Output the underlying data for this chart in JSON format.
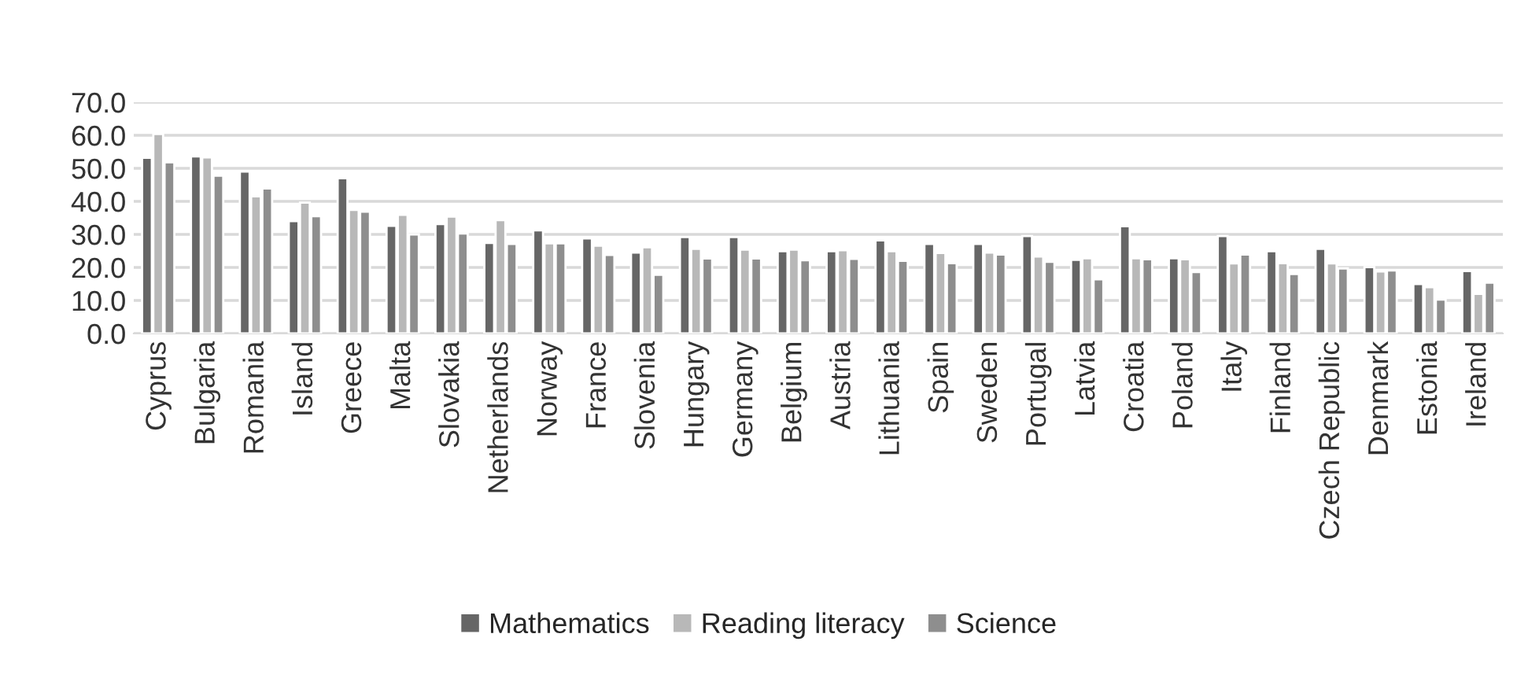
{
  "chart_data": {
    "type": "bar",
    "categories": [
      "Cyprus",
      "Bulgaria",
      "Romania",
      "Island",
      "Greece",
      "Malta",
      "Slovakia",
      "Netherlands",
      "Norway",
      "France",
      "Slovenia",
      "Hungary",
      "Germany",
      "Belgium",
      "Austria",
      "Lithuania",
      "Spain",
      "Sweden",
      "Portugal",
      "Latvia",
      "Croatia",
      "Poland",
      "Italy",
      "Finland",
      "Czech Republic",
      "Denmark",
      "Estonia",
      "Ireland"
    ],
    "series": [
      {
        "name": "Mathematics",
        "color": "#666666",
        "values": [
          53.2,
          53.6,
          49.0,
          34.0,
          47.0,
          32.6,
          33.1,
          27.4,
          31.2,
          28.8,
          24.5,
          29.2,
          29.2,
          24.9,
          24.9,
          28.2,
          27.1,
          27.1,
          29.5,
          22.3,
          32.5,
          22.8,
          29.5,
          24.9,
          25.6,
          20.1,
          15.0,
          18.9
        ]
      },
      {
        "name": "Reading literacy",
        "color": "#b8b8b8",
        "values": [
          60.4,
          53.3,
          41.5,
          39.6,
          37.4,
          35.9,
          35.4,
          34.3,
          27.3,
          26.6,
          26.1,
          25.6,
          25.4,
          25.4,
          25.2,
          24.9,
          24.4,
          24.5,
          23.3,
          22.8,
          22.8,
          22.5,
          21.2,
          21.3,
          21.2,
          18.8,
          14.0,
          12.0
        ]
      },
      {
        "name": "Science",
        "color": "#8e8e8e",
        "values": [
          51.8,
          47.8,
          43.9,
          35.5,
          36.9,
          30.0,
          30.3,
          27.1,
          27.3,
          23.8,
          17.8,
          22.7,
          22.7,
          22.2,
          22.6,
          22.0,
          21.3,
          23.9,
          21.7,
          16.4,
          22.5,
          18.6,
          23.9,
          18.0,
          19.7,
          19.1,
          10.3,
          15.4
        ]
      }
    ],
    "ylim": [
      0,
      70
    ],
    "yticks": [
      {
        "value": 0,
        "label": "0.0"
      },
      {
        "value": 10,
        "label": "10.0"
      },
      {
        "value": 20,
        "label": "20.0"
      },
      {
        "value": 30,
        "label": "30.0"
      },
      {
        "value": 40,
        "label": "40.0"
      },
      {
        "value": 50,
        "label": "50.0"
      },
      {
        "value": 60,
        "label": "60.0"
      },
      {
        "value": 70,
        "label": "70.0"
      }
    ],
    "grid": "y",
    "legend": "bottom"
  }
}
